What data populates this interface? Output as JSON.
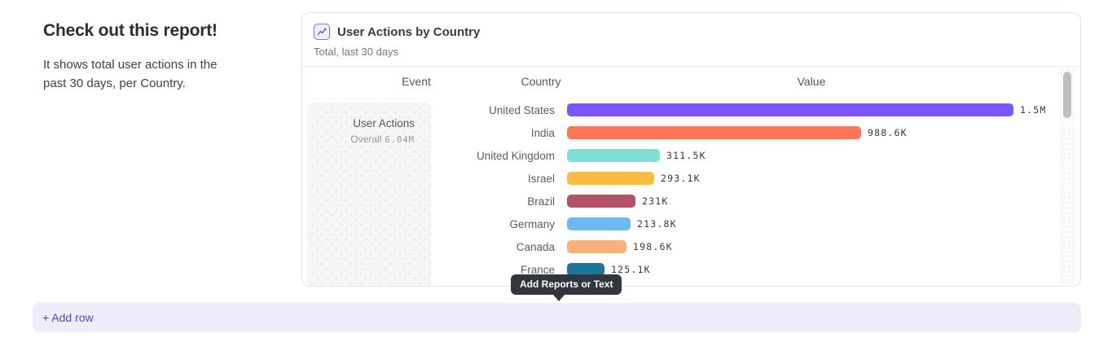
{
  "intro": {
    "heading": "Check out this report!",
    "description": "It shows total user actions in the past 30 days, per Country."
  },
  "report_card": {
    "title": "User Actions by Country",
    "subtitle": "Total, last 30 days",
    "icon": "line-chart-icon",
    "accent_color": "#7a52f4",
    "columns": [
      "Event",
      "Country",
      "Value"
    ],
    "event_cell": {
      "name": "User Actions",
      "overall_label": "Overall",
      "overall_value": "6.04M"
    },
    "chart_data": {
      "type": "bar",
      "orientation": "horizontal",
      "categories": [
        "United States",
        "India",
        "United Kingdom",
        "Israel",
        "Brazil",
        "Germany",
        "Canada",
        "France"
      ],
      "values": [
        1500000,
        988600,
        311500,
        293100,
        231000,
        213800,
        198600,
        125100
      ],
      "value_labels": [
        "1.5M",
        "988.6K",
        "311.5K",
        "293.1K",
        "231K",
        "213.8K",
        "198.6K",
        "125.1K"
      ],
      "colors": [
        "#7c55fa",
        "#ff7557",
        "#7edfd3",
        "#f7bd42",
        "#b25168",
        "#6eb9f2",
        "#fbb179",
        "#17789c"
      ],
      "xlim": [
        0,
        1500000
      ],
      "legend": "none",
      "grid": false
    }
  },
  "tooltip": {
    "label": "Add Reports or Text"
  },
  "add_row": {
    "label": "+ Add row"
  }
}
